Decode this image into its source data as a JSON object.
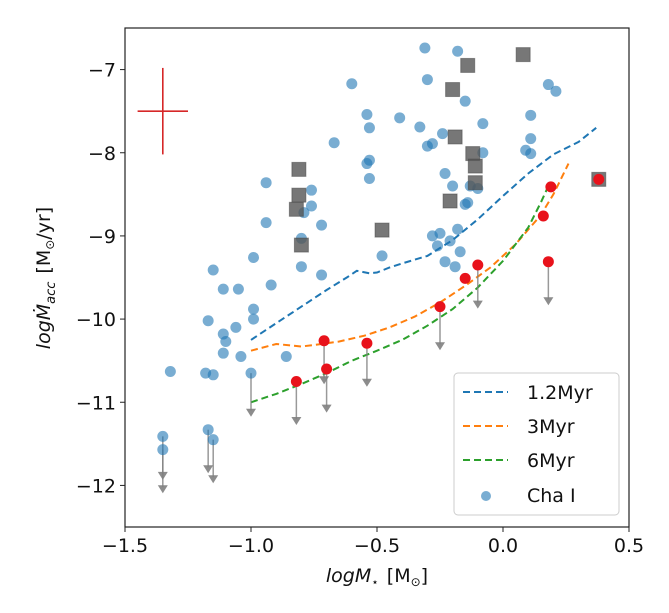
{
  "chart_data": {
    "type": "scatter",
    "title": "",
    "xlabel": "logM_⋆ [M_⊙]",
    "xlabel_parts": {
      "main": "logM",
      "sub": "⋆",
      "unit_open": "[M",
      "unit_sub": "⊙",
      "unit_close": "]"
    },
    "ylabel": "logṀ_acc [M_⊙/yr]",
    "ylabel_parts": {
      "main": "logṀ",
      "sub": "acc",
      "unit_open": "[M",
      "unit_sub": "⊙",
      "unit_close": "/yr]"
    },
    "xlim": [
      -1.5,
      0.5
    ],
    "ylim": [
      -12.5,
      -6.5
    ],
    "xticks": [
      -1.5,
      -1.0,
      -0.5,
      0.0,
      0.5
    ],
    "xtick_labels": [
      "−1.5",
      "−1.0",
      "−0.5",
      "0.0",
      "0.5"
    ],
    "yticks": [
      -7,
      -8,
      -9,
      -10,
      -11,
      -12
    ],
    "ytick_labels": [
      "−7",
      "−8",
      "−9",
      "−10",
      "−11",
      "−12"
    ],
    "grid": false,
    "legend_position": "bottom-right",
    "legend": [
      {
        "label": "1.2Myr",
        "kind": "dashed-line",
        "color": "#1f77b4"
      },
      {
        "label": "3Myr",
        "kind": "dashed-line",
        "color": "#ff7f0e"
      },
      {
        "label": "6Myr",
        "kind": "dashed-line",
        "color": "#2ca02c"
      },
      {
        "label": "Cha I",
        "kind": "marker",
        "color": "#1f77b4"
      }
    ],
    "error_cross": {
      "x": -1.35,
      "y": -7.5,
      "xerr": 0.1,
      "yerr": 0.52,
      "color": "#d62728"
    },
    "series": [
      {
        "name": "1.2Myr",
        "type": "line",
        "style": "dashed",
        "color": "#1f77b4",
        "points": [
          [
            -1.0,
            -10.25
          ],
          [
            -0.9,
            -10.05
          ],
          [
            -0.8,
            -9.85
          ],
          [
            -0.7,
            -9.65
          ],
          [
            -0.62,
            -9.5
          ],
          [
            -0.58,
            -9.42
          ],
          [
            -0.53,
            -9.45
          ],
          [
            -0.5,
            -9.44
          ],
          [
            -0.45,
            -9.38
          ],
          [
            -0.4,
            -9.33
          ],
          [
            -0.3,
            -9.24
          ],
          [
            -0.2,
            -9.05
          ],
          [
            -0.1,
            -8.8
          ],
          [
            0.0,
            -8.52
          ],
          [
            0.1,
            -8.25
          ],
          [
            0.2,
            -8.02
          ],
          [
            0.3,
            -7.87
          ],
          [
            0.37,
            -7.7
          ]
        ]
      },
      {
        "name": "3Myr",
        "type": "line",
        "style": "dashed",
        "color": "#ff7f0e",
        "points": [
          [
            -1.0,
            -10.38
          ],
          [
            -0.9,
            -10.3
          ],
          [
            -0.8,
            -10.33
          ],
          [
            -0.72,
            -10.3
          ],
          [
            -0.65,
            -10.27
          ],
          [
            -0.55,
            -10.2
          ],
          [
            -0.45,
            -10.1
          ],
          [
            -0.35,
            -9.97
          ],
          [
            -0.25,
            -9.8
          ],
          [
            -0.15,
            -9.6
          ],
          [
            -0.05,
            -9.38
          ],
          [
            0.05,
            -9.1
          ],
          [
            0.15,
            -8.75
          ],
          [
            0.2,
            -8.5
          ],
          [
            0.26,
            -8.13
          ]
        ]
      },
      {
        "name": "6Myr",
        "type": "line",
        "style": "dashed",
        "color": "#2ca02c",
        "points": [
          [
            -1.0,
            -11.0
          ],
          [
            -0.9,
            -10.9
          ],
          [
            -0.8,
            -10.78
          ],
          [
            -0.7,
            -10.65
          ],
          [
            -0.6,
            -10.5
          ],
          [
            -0.5,
            -10.38
          ],
          [
            -0.4,
            -10.25
          ],
          [
            -0.3,
            -10.08
          ],
          [
            -0.2,
            -9.88
          ],
          [
            -0.1,
            -9.62
          ],
          [
            0.0,
            -9.3
          ],
          [
            0.1,
            -8.9
          ],
          [
            0.15,
            -8.6
          ],
          [
            0.18,
            -8.4
          ]
        ]
      },
      {
        "name": "Cha I",
        "type": "scatter",
        "marker": "circle",
        "color": "#1f77b4",
        "alpha": 0.6,
        "points": [
          [
            -0.31,
            -6.74
          ],
          [
            -0.18,
            -6.78
          ],
          [
            -0.6,
            -7.17
          ],
          [
            -0.3,
            -7.12
          ],
          [
            -0.15,
            -7.38
          ],
          [
            0.18,
            -7.18
          ],
          [
            0.21,
            -7.26
          ],
          [
            -0.54,
            -7.54
          ],
          [
            -0.41,
            -7.58
          ],
          [
            -0.53,
            -7.7
          ],
          [
            -0.33,
            -7.69
          ],
          [
            -0.08,
            -7.65
          ],
          [
            0.11,
            -7.55
          ],
          [
            -0.24,
            -7.77
          ],
          [
            -0.3,
            -7.92
          ],
          [
            -0.28,
            -7.89
          ],
          [
            0.11,
            -7.83
          ],
          [
            0.09,
            -7.97
          ],
          [
            0.11,
            -8.01
          ],
          [
            -0.08,
            -8.0
          ],
          [
            -0.54,
            -8.13
          ],
          [
            -0.53,
            -8.09
          ],
          [
            -0.53,
            -8.31
          ],
          [
            -0.23,
            -8.25
          ],
          [
            -0.2,
            -8.4
          ],
          [
            -0.13,
            -8.4
          ],
          [
            -0.1,
            -8.43
          ],
          [
            -0.14,
            -8.6
          ],
          [
            -0.15,
            -8.62
          ],
          [
            -0.48,
            -9.24
          ],
          [
            -0.18,
            -8.92
          ],
          [
            -0.25,
            -8.97
          ],
          [
            -0.28,
            -9.0
          ],
          [
            -0.26,
            -9.12
          ],
          [
            -0.21,
            -9.06
          ],
          [
            -0.17,
            -9.19
          ],
          [
            -0.23,
            -9.31
          ],
          [
            -0.19,
            -9.37
          ],
          [
            -0.67,
            -7.88
          ],
          [
            -0.94,
            -8.36
          ],
          [
            -0.76,
            -8.45
          ],
          [
            -0.76,
            -8.64
          ],
          [
            -0.79,
            -8.72
          ],
          [
            -0.94,
            -8.84
          ],
          [
            -0.72,
            -8.87
          ],
          [
            -0.8,
            -9.03
          ],
          [
            -0.99,
            -9.26
          ],
          [
            -0.8,
            -9.37
          ],
          [
            -1.15,
            -9.41
          ],
          [
            -0.72,
            -9.47
          ],
          [
            -1.11,
            -9.64
          ],
          [
            -1.05,
            -9.64
          ],
          [
            -0.92,
            -9.59
          ],
          [
            -0.99,
            -9.88
          ],
          [
            -1.17,
            -10.02
          ],
          [
            -0.99,
            -10.0
          ],
          [
            -1.06,
            -10.1
          ],
          [
            -1.11,
            -10.18
          ],
          [
            -1.1,
            -10.27
          ],
          [
            -1.11,
            -10.41
          ],
          [
            -1.04,
            -10.45
          ],
          [
            -0.86,
            -10.45
          ],
          [
            -1.32,
            -10.63
          ],
          [
            -1.18,
            -10.65
          ],
          [
            -1.15,
            -10.67
          ]
        ]
      },
      {
        "name": "Cha I upper limits",
        "type": "scatter",
        "marker": "circle-with-down-arrow",
        "color": "#1f77b4",
        "arrow_color": "#808080",
        "arrow_length": 0.5,
        "points": [
          [
            -1.0,
            -10.65
          ],
          [
            -1.35,
            -11.41
          ],
          [
            -1.35,
            -11.57
          ],
          [
            -1.17,
            -11.33
          ],
          [
            -1.15,
            -11.45
          ]
        ]
      },
      {
        "name": "Squares",
        "type": "scatter",
        "marker": "square",
        "color": "#555555",
        "alpha": 0.8,
        "points": [
          [
            0.08,
            -6.82
          ],
          [
            -0.14,
            -6.95
          ],
          [
            -0.2,
            -7.24
          ],
          [
            -0.19,
            -7.81
          ],
          [
            -0.12,
            -8.01
          ],
          [
            -0.11,
            -8.16
          ],
          [
            -0.11,
            -8.36
          ],
          [
            -0.21,
            -8.58
          ],
          [
            -0.48,
            -8.93
          ],
          [
            0.38,
            -8.32
          ],
          [
            -0.81,
            -8.2
          ],
          [
            -0.81,
            -8.51
          ],
          [
            -0.82,
            -8.68
          ],
          [
            -0.8,
            -9.11
          ]
        ]
      },
      {
        "name": "Red",
        "type": "scatter",
        "marker": "circle",
        "color": "#e8121b",
        "points": [
          [
            -0.15,
            -9.51
          ],
          [
            0.16,
            -8.76
          ],
          [
            0.19,
            -8.41
          ],
          [
            0.38,
            -8.32
          ]
        ]
      },
      {
        "name": "Red upper limits",
        "type": "scatter",
        "marker": "circle-with-down-arrow",
        "color": "#e8121b",
        "arrow_color": "#808080",
        "arrow_length": 0.5,
        "points": [
          [
            -0.71,
            -10.26
          ],
          [
            -0.7,
            -10.6
          ],
          [
            -0.82,
            -10.75
          ],
          [
            -0.54,
            -10.29
          ],
          [
            -0.25,
            -9.85
          ],
          [
            -0.1,
            -9.35
          ],
          [
            0.18,
            -9.31
          ]
        ]
      }
    ]
  }
}
